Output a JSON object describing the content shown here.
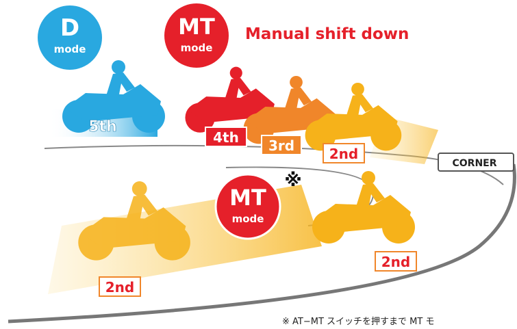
{
  "badges": [
    {
      "label": "D",
      "sub": "mode"
    },
    {
      "label": "MT",
      "sub": "mode"
    },
    {
      "label": "MT",
      "sub": "mode"
    }
  ],
  "heading": "Manual shift down",
  "gears": [
    "5th",
    "4th",
    "3rd",
    "2nd",
    "2nd",
    "2nd"
  ],
  "corner": "CORNER",
  "note_mark": "※",
  "footnote": "※ AT−MT スイッチを押すまで MT モ"
}
